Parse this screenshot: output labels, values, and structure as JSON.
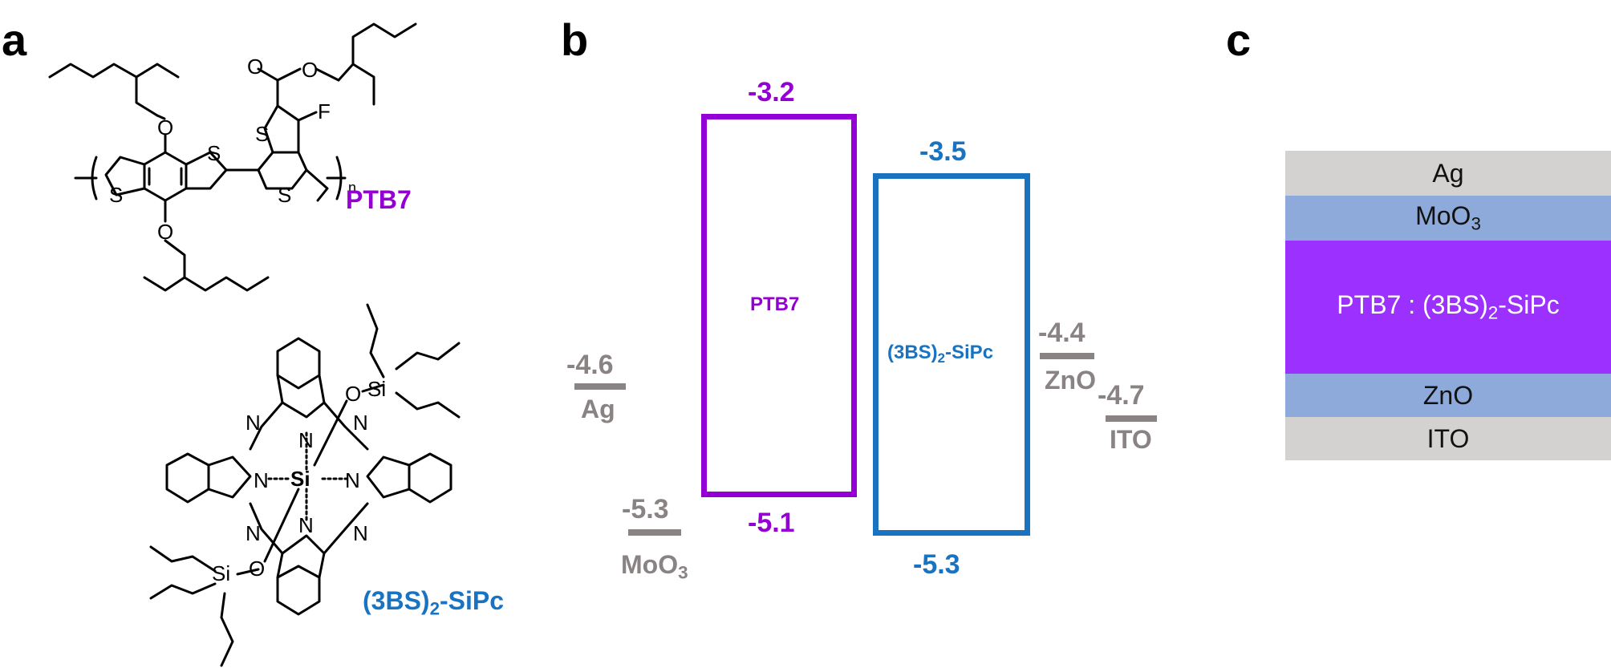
{
  "panels": {
    "a": "a",
    "b": "b",
    "c": "c"
  },
  "molecules": {
    "ptb7_label": "PTB7",
    "sipc_label_main": "(3BS)",
    "sipc_label_sub": "2",
    "sipc_label_tail": "-SiPc",
    "atoms": {
      "O": "O",
      "S": "S",
      "F": "F",
      "N": "N",
      "Si": "Si",
      "n": "n"
    }
  },
  "energy_diagram": {
    "ptb7": {
      "name": "PTB7",
      "lumo": "-3.2",
      "homo": "-5.1"
    },
    "sipc": {
      "name_main": "(3BS)",
      "name_sub": "2",
      "name_tail": "-SiPc",
      "lumo": "-3.5",
      "homo": "-5.3"
    },
    "ag": {
      "value": "-4.6",
      "name": "Ag"
    },
    "moo3": {
      "value": "-5.3",
      "name_main": "MoO",
      "name_sub": "3"
    },
    "zno": {
      "value": "-4.4",
      "name": "ZnO"
    },
    "ito": {
      "value": "-4.7",
      "name": "ITO"
    }
  },
  "device_stack": {
    "layers": [
      {
        "name": "Ag"
      },
      {
        "name_main": "MoO",
        "name_sub": "3"
      },
      {
        "name_main": "PTB7 : (3BS)",
        "name_sub": "2",
        "name_tail": "-SiPc"
      },
      {
        "name": "ZnO"
      },
      {
        "name": "ITO"
      }
    ]
  },
  "colors": {
    "ptb7": "#9400D3",
    "sipc": "#1a73c0",
    "electrode_gray": "#8a8383",
    "layer_gray": "#d4d1d1",
    "layer_blue": "#8eaadb",
    "layer_purple": "#9b30ff"
  }
}
